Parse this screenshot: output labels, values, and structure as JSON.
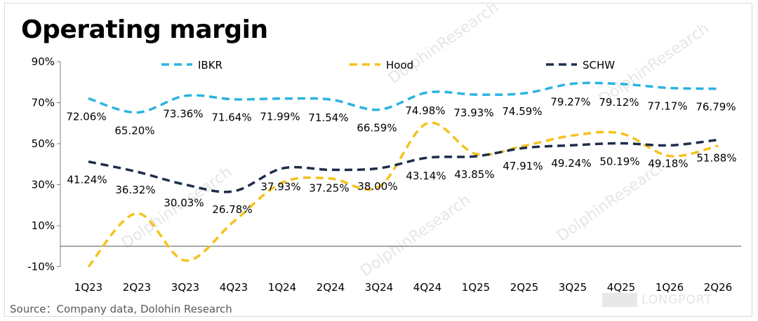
{
  "chart_data": {
    "type": "line",
    "title": "Operating margin",
    "categories": [
      "1Q23",
      "2Q23",
      "3Q23",
      "4Q23",
      "1Q24",
      "2Q24",
      "3Q24",
      "4Q24",
      "1Q25",
      "2Q25",
      "3Q25",
      "4Q25",
      "1Q26",
      "2Q26"
    ],
    "yticks": [
      "90%",
      "70%",
      "50%",
      "30%",
      "10%",
      "-10%"
    ],
    "ylim": [
      -10,
      90
    ],
    "grid": false,
    "legend_position": "top",
    "series": [
      {
        "name": "IBKR",
        "color": "#2bb3e0",
        "values": [
          72.06,
          65.2,
          73.36,
          71.64,
          71.99,
          71.54,
          66.59,
          74.98,
          73.93,
          74.59,
          79.27,
          79.12,
          77.17,
          76.79
        ],
        "labels": [
          "72.06%",
          "65.20%",
          "73.36%",
          "71.64%",
          "71.99%",
          "71.54%",
          "66.59%",
          "74.98%",
          "73.93%",
          "74.59%",
          "79.27%",
          "79.12%",
          "77.17%",
          "76.79%"
        ]
      },
      {
        "name": "Hood",
        "color": "#f5c21b",
        "values": [
          -10,
          16,
          -7,
          12,
          31,
          33,
          29,
          60,
          45,
          49,
          54,
          55,
          44,
          49
        ],
        "labels": []
      },
      {
        "name": "SCHW",
        "color": "#1d2d4a",
        "values": [
          41.24,
          36.32,
          30.03,
          26.78,
          37.93,
          37.25,
          38.0,
          43.14,
          43.85,
          47.91,
          49.24,
          50.19,
          49.18,
          51.88
        ],
        "labels": [
          "41.24%",
          "36.32%",
          "30.03%",
          "26.78%",
          "37.93%",
          "37.25%",
          "38.00%",
          "43.14%",
          "43.85%",
          "47.91%",
          "49.24%",
          "50.19%",
          "49.18%",
          "51.88%"
        ]
      }
    ]
  },
  "source": "Source：Company data,  Dolohin Research",
  "watermark": "DolphinResearch",
  "brand": "LONGPORT"
}
